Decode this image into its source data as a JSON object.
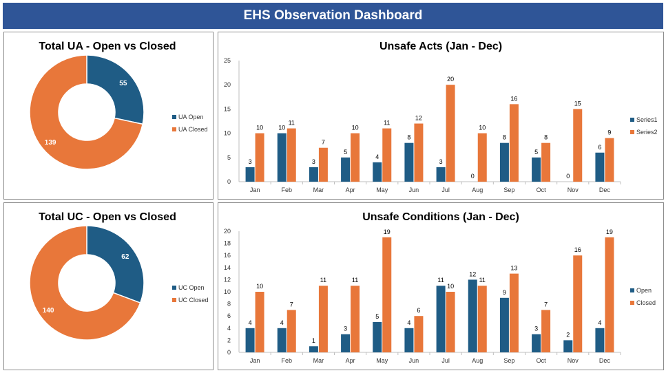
{
  "header": {
    "title": "EHS Observation Dashboard"
  },
  "colors": {
    "open": "#1f5c85",
    "closed": "#e8773a",
    "header": "#2f5597"
  },
  "chart_data": [
    {
      "type": "pie",
      "title": "Total UA - Open vs Closed",
      "labels": [
        "UA Open",
        "UA Closed"
      ],
      "values": [
        55,
        139
      ],
      "legend": "right"
    },
    {
      "type": "bar",
      "title": "Unsafe Acts (Jan - Dec)",
      "categories": [
        "Jan",
        "Feb",
        "Mar",
        "Apr",
        "May",
        "Jun",
        "Jul",
        "Aug",
        "Sep",
        "Oct",
        "Nov",
        "Dec"
      ],
      "series": [
        {
          "name": "Series1",
          "values": [
            3,
            10,
            3,
            5,
            4,
            8,
            3,
            0,
            8,
            5,
            0,
            6
          ]
        },
        {
          "name": "Series2",
          "values": [
            10,
            11,
            7,
            10,
            11,
            12,
            20,
            10,
            16,
            8,
            15,
            9
          ]
        }
      ],
      "ylim": [
        0,
        25
      ],
      "yticks": [
        0,
        5,
        10,
        15,
        20,
        25
      ],
      "legend": "right",
      "grid": false
    },
    {
      "type": "pie",
      "title": "Total UC - Open vs Closed",
      "labels": [
        "UC Open",
        "UC Closed"
      ],
      "values": [
        62,
        140
      ],
      "legend": "right"
    },
    {
      "type": "bar",
      "title": "Unsafe Conditions (Jan - Dec)",
      "categories": [
        "Jan",
        "Feb",
        "Mar",
        "Apr",
        "May",
        "Jun",
        "Jul",
        "Aug",
        "Sep",
        "Oct",
        "Nov",
        "Dec"
      ],
      "series": [
        {
          "name": "Open",
          "values": [
            4,
            4,
            1,
            3,
            5,
            4,
            11,
            12,
            9,
            3,
            2,
            4
          ]
        },
        {
          "name": "Closed",
          "values": [
            10,
            7,
            11,
            11,
            19,
            6,
            10,
            11,
            13,
            7,
            16,
            19
          ]
        }
      ],
      "ylim": [
        0,
        20
      ],
      "yticks": [
        0,
        2,
        4,
        6,
        8,
        10,
        12,
        14,
        16,
        18,
        20
      ],
      "legend": "right",
      "grid": false
    }
  ]
}
